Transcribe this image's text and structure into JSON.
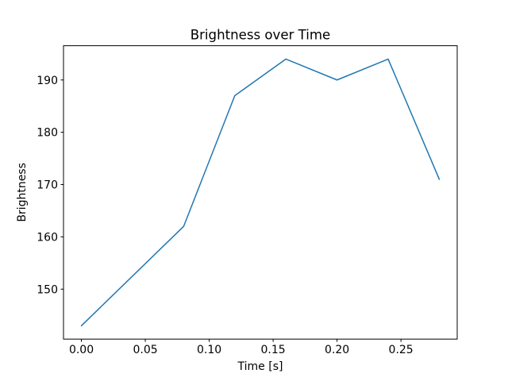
{
  "chart_data": {
    "type": "line",
    "title": "Brightness over Time",
    "xlabel": "Time [s]",
    "ylabel": "Brightness",
    "x": [
      0.0,
      0.08,
      0.12,
      0.16,
      0.2,
      0.24,
      0.28
    ],
    "y": [
      143,
      162,
      187,
      194,
      190,
      194,
      171
    ],
    "series_name": "Brightness",
    "xlim": [
      -0.014,
      0.294
    ],
    "ylim": [
      140.45,
      196.55
    ],
    "xticks": [
      0.0,
      0.05,
      0.1,
      0.15,
      0.2,
      0.25
    ],
    "xtick_labels": [
      "0.00",
      "0.05",
      "0.10",
      "0.15",
      "0.20",
      "0.25"
    ],
    "yticks": [
      150,
      160,
      170,
      180,
      190
    ],
    "ytick_labels": [
      "150",
      "160",
      "170",
      "180",
      "190"
    ],
    "line_color": "#1f77b4",
    "axes_color": "#000000",
    "background_color": "#ffffff",
    "grid": false,
    "legend_position": "none"
  }
}
